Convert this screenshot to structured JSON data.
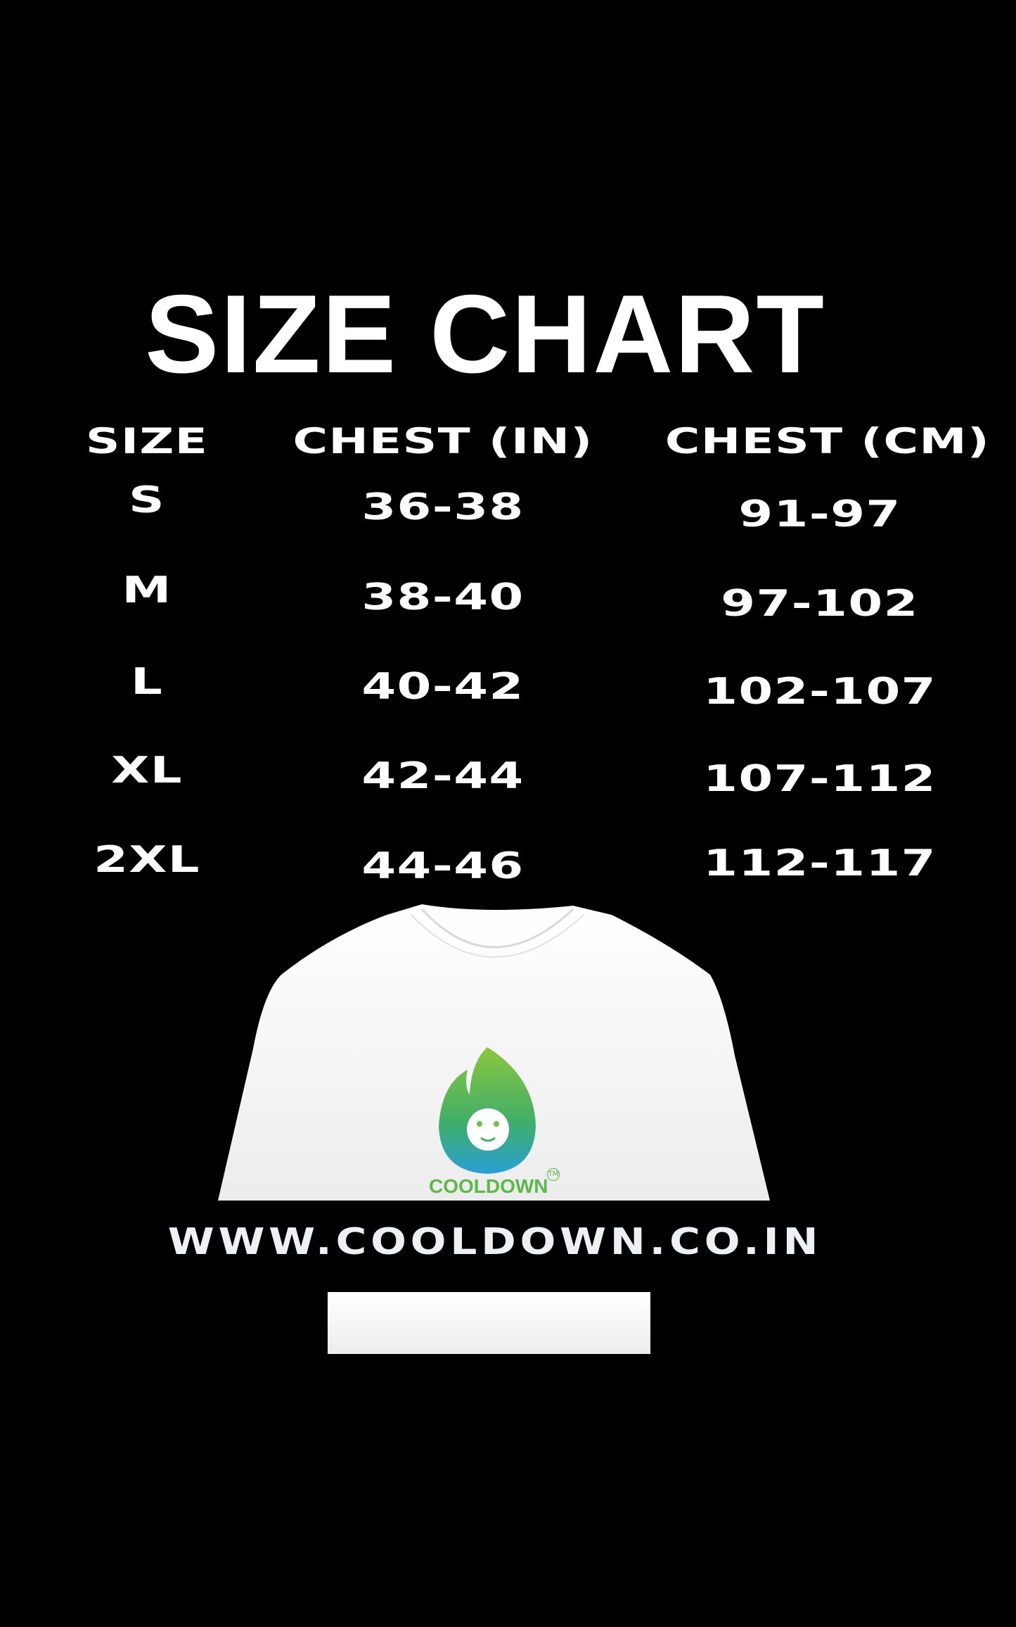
{
  "title": "SIZE CHART",
  "table": {
    "headers": [
      "SIZE",
      "CHEST (IN)",
      "CHEST (CM)"
    ],
    "rows": [
      [
        "S",
        "36-38",
        "91-97"
      ],
      [
        "M",
        "38-40",
        "97-102"
      ],
      [
        "L",
        "40-42",
        "102-107"
      ],
      [
        "XL",
        "42-44",
        "107-112"
      ],
      [
        "2XL",
        "44-46",
        "112-117"
      ]
    ]
  },
  "brand": {
    "name": "COOLDOWN",
    "trademark": "TM",
    "logo": "monkey-flame-logo",
    "colors": {
      "green": "#5cb848",
      "blue": "#2a9fd6"
    }
  },
  "website": "WWW.COOLDOWN.CO.IN"
}
